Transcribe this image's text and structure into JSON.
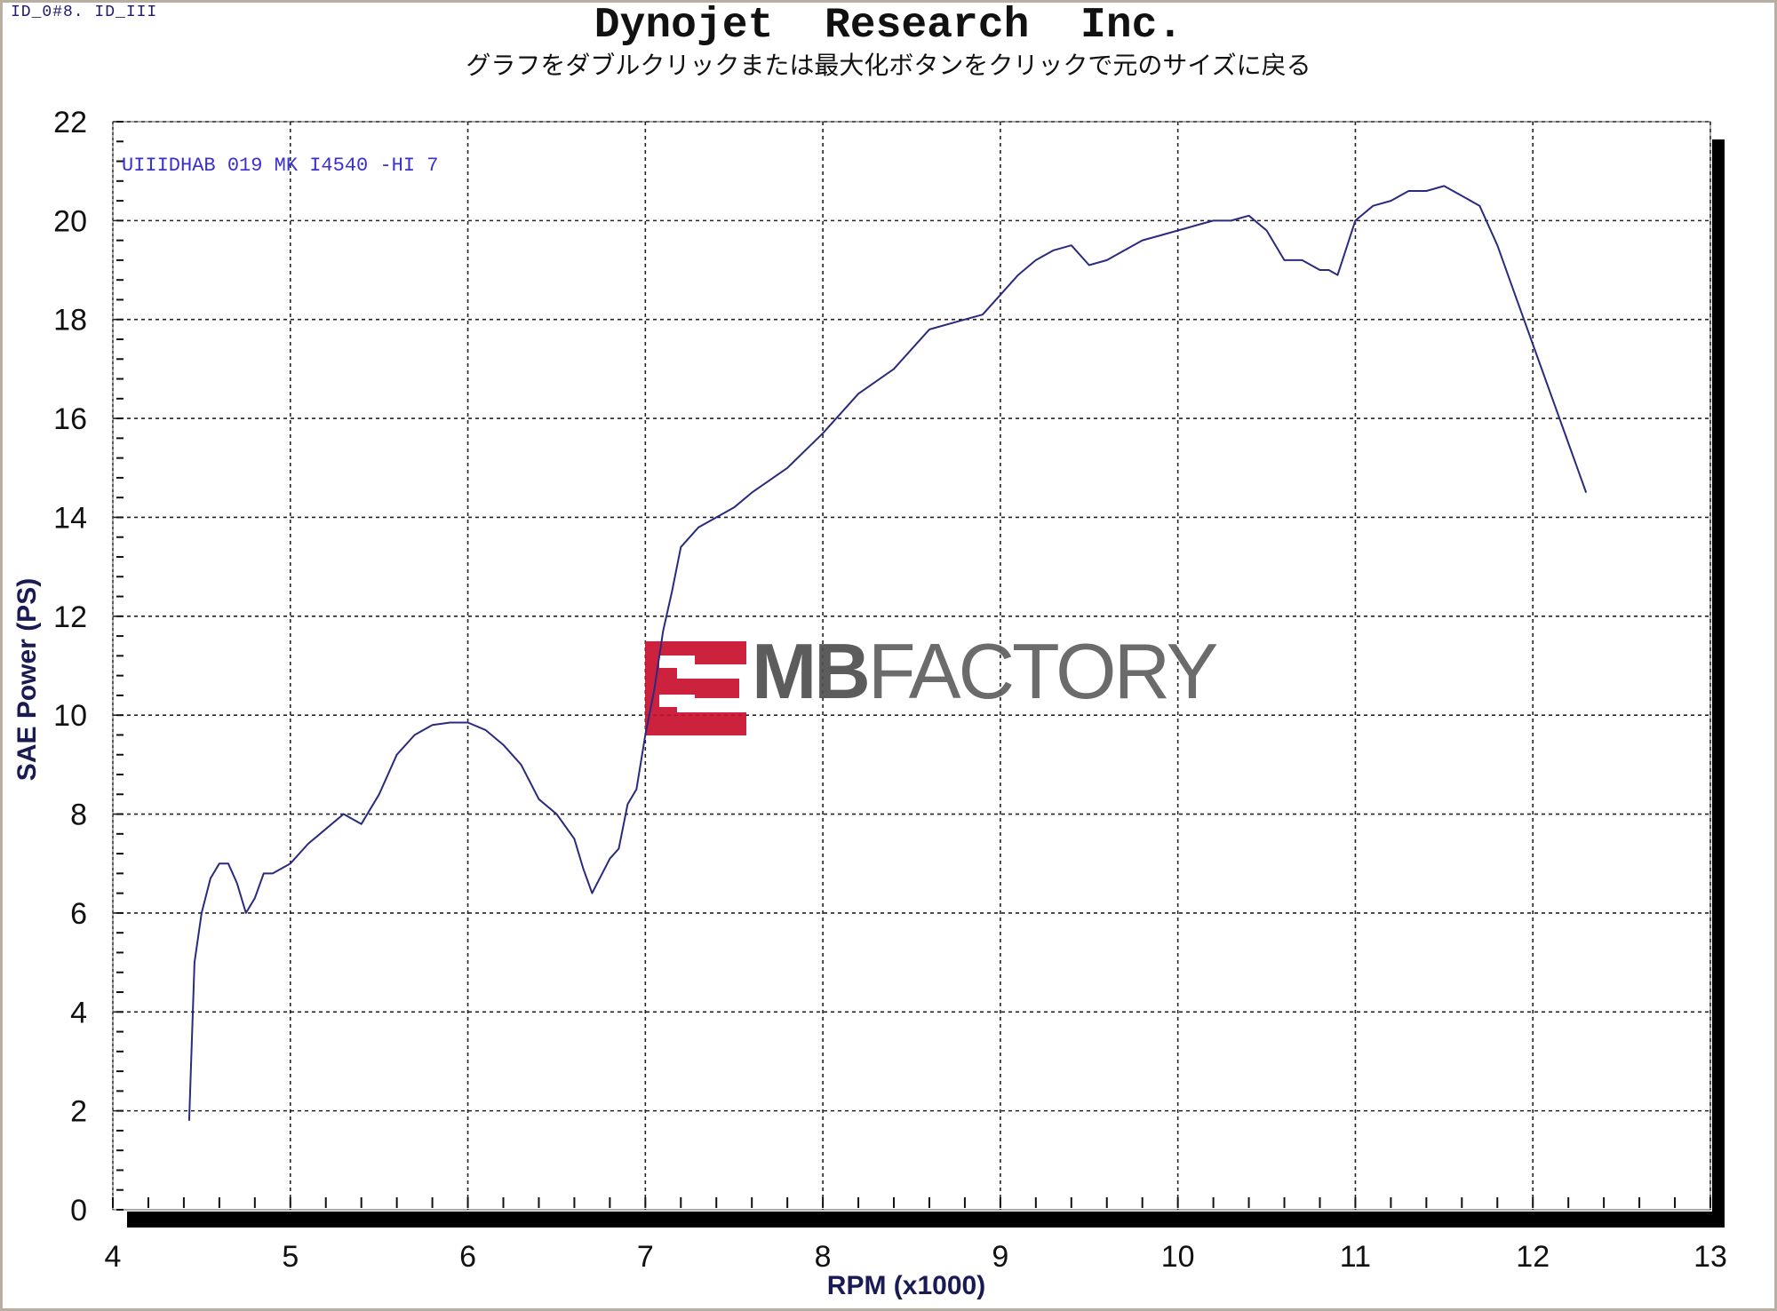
{
  "header": {
    "corner_text": "ID_0#8. ID_III",
    "title": "Dynojet  Research  Inc.",
    "subtitle": "グラフをダブルクリックまたは最大化ボタンをクリックで元のサイズに戻る"
  },
  "watermark": {
    "text_bold": "MB",
    "text_light": "FACTORY",
    "logo_color": "#c8102e"
  },
  "colors": {
    "line": "#2a2a80",
    "grid": "#222222",
    "plot_bg": "#ffffff",
    "shadow": "#000000"
  },
  "chart_data": {
    "type": "line",
    "title": "Dynojet  Research  Inc.",
    "xlabel": "RPM (x1000)",
    "ylabel": "SAE Power (PS)",
    "xlim": [
      4,
      13
    ],
    "ylim": [
      0,
      22
    ],
    "x_ticks": [
      4,
      5,
      6,
      7,
      8,
      9,
      10,
      11,
      12,
      13
    ],
    "y_ticks": [
      0,
      2,
      4,
      6,
      8,
      10,
      12,
      14,
      16,
      18,
      20,
      22
    ],
    "grid": true,
    "legend": "top-left",
    "series": [
      {
        "name": "UIIIDHAB 019  MK I4540 -HI 7",
        "x": [
          4.43,
          4.46,
          4.5,
          4.55,
          4.6,
          4.65,
          4.7,
          4.75,
          4.8,
          4.85,
          4.9,
          5.0,
          5.1,
          5.2,
          5.3,
          5.35,
          5.4,
          5.5,
          5.6,
          5.7,
          5.8,
          5.9,
          6.0,
          6.1,
          6.2,
          6.3,
          6.4,
          6.5,
          6.6,
          6.65,
          6.7,
          6.8,
          6.85,
          6.9,
          6.95,
          7.0,
          7.05,
          7.1,
          7.15,
          7.2,
          7.3,
          7.4,
          7.5,
          7.6,
          7.8,
          8.0,
          8.2,
          8.4,
          8.6,
          8.8,
          8.9,
          9.0,
          9.1,
          9.2,
          9.3,
          9.4,
          9.5,
          9.6,
          9.7,
          9.8,
          9.9,
          10.0,
          10.1,
          10.2,
          10.3,
          10.4,
          10.5,
          10.6,
          10.7,
          10.8,
          10.85,
          10.9,
          11.0,
          11.1,
          11.2,
          11.3,
          11.4,
          11.5,
          11.6,
          11.7,
          11.8,
          11.9,
          12.0,
          12.1,
          12.2,
          12.3
        ],
        "y": [
          1.8,
          5.0,
          6.0,
          6.7,
          7.0,
          7.0,
          6.6,
          6.0,
          6.3,
          6.8,
          6.8,
          7.0,
          7.4,
          7.7,
          8.0,
          7.9,
          7.8,
          8.4,
          9.2,
          9.6,
          9.8,
          9.85,
          9.85,
          9.7,
          9.4,
          9.0,
          8.3,
          8.0,
          7.5,
          6.9,
          6.4,
          7.1,
          7.3,
          8.2,
          8.5,
          9.6,
          10.5,
          11.7,
          12.5,
          13.4,
          13.8,
          14.0,
          14.2,
          14.5,
          15.0,
          15.7,
          16.5,
          17.0,
          17.8,
          18.0,
          18.1,
          18.5,
          18.9,
          19.2,
          19.4,
          19.5,
          19.1,
          19.2,
          19.4,
          19.6,
          19.7,
          19.8,
          19.9,
          20.0,
          20.0,
          20.1,
          19.8,
          19.2,
          19.2,
          19.0,
          19.0,
          18.9,
          20.0,
          20.3,
          20.4,
          20.6,
          20.6,
          20.7,
          20.5,
          20.3,
          19.5,
          18.5,
          17.5,
          16.5,
          15.5,
          14.5
        ],
        "color": "#2a2a80"
      }
    ]
  }
}
